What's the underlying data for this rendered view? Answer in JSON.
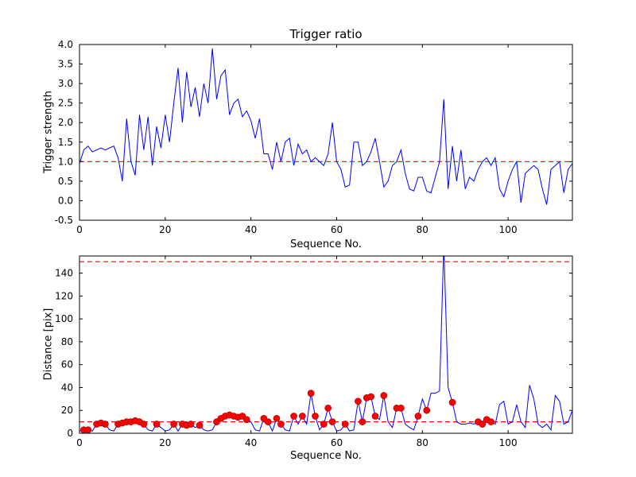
{
  "figure": {
    "background": "#ffffff",
    "frame_color": "#000000",
    "tick_label_color": "#000000"
  },
  "labels": {
    "top_title": "Trigger ratio",
    "top_ylabel": "Trigger strength",
    "top_xlabel": "Sequence No.",
    "bottom_ylabel": "Distance [pix]",
    "bottom_xlabel": "Sequence No."
  },
  "chart_data": [
    {
      "type": "line",
      "title": "Trigger ratio",
      "xlabel": "Sequence No.",
      "ylabel": "Trigger strength",
      "xlim": [
        0,
        115
      ],
      "ylim": [
        -0.5,
        4.0
      ],
      "xticks": [
        0,
        20,
        40,
        60,
        80,
        100
      ],
      "xtick_labels": [
        "0",
        "20",
        "40",
        "60",
        "80",
        "100"
      ],
      "yticks": [
        -0.5,
        0.0,
        0.5,
        1.0,
        1.5,
        2.0,
        2.5,
        3.0,
        3.5,
        4.0
      ],
      "ytick_labels": [
        "-0.5",
        "0.0",
        "0.5",
        "1.0",
        "1.5",
        "2.0",
        "2.5",
        "3.0",
        "3.5",
        "4.0"
      ],
      "grid": false,
      "legend": null,
      "line_color": "#0000ff",
      "line_width": 1,
      "x_is_index": true,
      "y": [
        0.95,
        1.3,
        1.4,
        1.25,
        1.3,
        1.35,
        1.3,
        1.35,
        1.4,
        1.1,
        0.5,
        2.1,
        1.0,
        0.65,
        2.2,
        1.3,
        2.15,
        0.9,
        1.9,
        1.35,
        2.2,
        1.5,
        2.5,
        3.4,
        2.0,
        3.3,
        2.4,
        2.9,
        2.15,
        3.0,
        2.5,
        3.9,
        2.6,
        3.2,
        3.35,
        2.2,
        2.5,
        2.6,
        2.15,
        2.3,
        2.05,
        1.6,
        2.1,
        1.2,
        1.2,
        0.8,
        1.5,
        1.0,
        1.5,
        1.6,
        0.9,
        1.45,
        1.2,
        1.3,
        1.0,
        1.1,
        1.0,
        0.9,
        1.2,
        2.0,
        1.0,
        0.8,
        0.35,
        0.4,
        1.5,
        1.5,
        0.9,
        1.0,
        1.25,
        1.6,
        1.0,
        0.35,
        0.5,
        0.9,
        1.0,
        1.3,
        0.7,
        0.3,
        0.25,
        0.6,
        0.6,
        0.25,
        0.2,
        0.6,
        1.0,
        2.6,
        0.3,
        1.4,
        0.5,
        1.3,
        0.3,
        0.6,
        0.5,
        0.8,
        1.0,
        1.1,
        0.9,
        1.1,
        0.3,
        0.1,
        0.5,
        0.8,
        1.0,
        -0.05,
        0.7,
        0.8,
        0.9,
        0.8,
        0.3,
        -0.1,
        0.8,
        0.9,
        1.0,
        0.2,
        0.8,
        0.95
      ],
      "thresholds": [
        {
          "y": 1.0,
          "color": "#ff0000",
          "style": "dashed"
        }
      ]
    },
    {
      "type": "line",
      "title": "",
      "xlabel": "Sequence No.",
      "ylabel": "Distance [pix]",
      "xlim": [
        0,
        115
      ],
      "ylim": [
        0,
        155
      ],
      "xticks": [
        0,
        20,
        40,
        60,
        80,
        100
      ],
      "xtick_labels": [
        "0",
        "20",
        "40",
        "60",
        "80",
        "100"
      ],
      "yticks": [
        0,
        20,
        40,
        60,
        80,
        100,
        120,
        140
      ],
      "ytick_labels": [
        "0",
        "20",
        "40",
        "60",
        "80",
        "100",
        "120",
        "140"
      ],
      "grid": false,
      "legend": null,
      "line_color": "#0000ff",
      "line_width": 1,
      "x_is_index": true,
      "y": [
        2,
        3,
        3,
        2,
        8,
        9,
        8,
        3,
        2,
        8,
        9,
        10,
        10,
        11,
        10,
        8,
        3,
        2,
        8,
        5,
        2,
        3,
        8,
        2,
        8,
        7,
        8,
        5,
        7,
        3,
        2,
        3,
        10,
        13,
        15,
        16,
        15,
        14,
        15,
        12,
        10,
        3,
        2,
        13,
        10,
        2,
        13,
        8,
        3,
        2,
        15,
        8,
        15,
        8,
        35,
        15,
        3,
        8,
        22,
        10,
        2,
        3,
        8,
        2,
        3,
        28,
        10,
        31,
        32,
        15,
        12,
        33,
        10,
        5,
        22,
        22,
        8,
        5,
        3,
        15,
        30,
        20,
        35,
        35,
        37,
        165,
        40,
        27,
        10,
        8,
        8,
        9,
        8,
        10,
        8,
        12,
        10,
        8,
        25,
        28,
        8,
        10,
        25,
        10,
        5,
        42,
        30,
        8,
        5,
        8,
        3,
        33,
        28,
        8,
        10,
        20
      ],
      "marker_color": "#ff0000",
      "marker_edge_color": "#aa0000",
      "marker_indices": [
        1,
        2,
        4,
        5,
        6,
        9,
        10,
        11,
        12,
        13,
        14,
        15,
        18,
        22,
        24,
        25,
        26,
        28,
        32,
        33,
        34,
        35,
        36,
        37,
        38,
        39,
        43,
        44,
        46,
        47,
        50,
        52,
        54,
        55,
        57,
        58,
        59,
        62,
        65,
        66,
        67,
        68,
        69,
        71,
        74,
        75,
        79,
        81,
        87,
        93,
        94,
        95,
        96
      ],
      "thresholds": [
        {
          "y": 10,
          "color": "#ff0000",
          "style": "dashed"
        },
        {
          "y": 150,
          "color": "#ff0000",
          "style": "dashed"
        }
      ]
    }
  ]
}
